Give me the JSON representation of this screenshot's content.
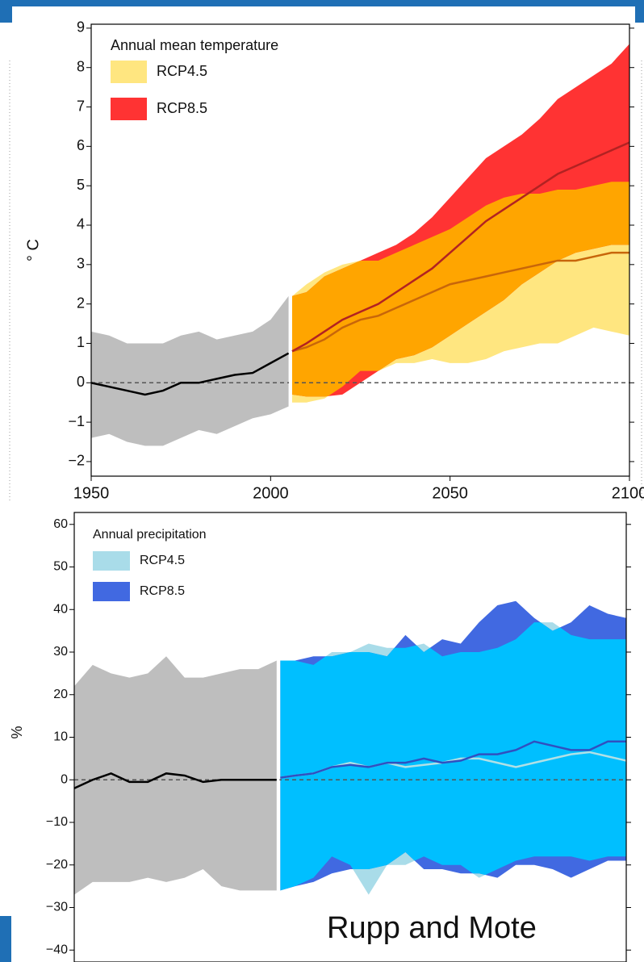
{
  "chart_data": [
    {
      "type": "band",
      "legend_title": "Annual mean temperature",
      "ylabel": "° C",
      "xlim": [
        1950,
        2100
      ],
      "xticks": [
        1950,
        2000,
        2050,
        2100
      ],
      "ylim": [
        -2.37,
        9.1
      ],
      "yticks": [
        {
          "value": -2,
          "label": "−2"
        },
        {
          "value": -1,
          "label": "−1"
        },
        0,
        1,
        2,
        3,
        4,
        5,
        6,
        7,
        8,
        9
      ],
      "zero_line": true,
      "overlap_color": "#ffa500",
      "historical": {
        "color": "#bebebe",
        "line_color": "#000000",
        "x": [
          1950,
          1955,
          1960,
          1965,
          1970,
          1975,
          1980,
          1985,
          1990,
          1995,
          2000,
          2005
        ],
        "upper": [
          1.3,
          1.2,
          1.0,
          1.0,
          1.0,
          1.2,
          1.3,
          1.1,
          1.2,
          1.3,
          1.6,
          2.2
        ],
        "lower": [
          -1.4,
          -1.3,
          -1.5,
          -1.6,
          -1.6,
          -1.4,
          -1.2,
          -1.3,
          -1.1,
          -0.9,
          -0.8,
          -0.6
        ],
        "mean": [
          0,
          -0.1,
          -0.2,
          -0.3,
          -0.2,
          0,
          0,
          0.1,
          0.2,
          0.25,
          0.5,
          0.75
        ]
      },
      "series": [
        {
          "name": "RCP4.5",
          "color": "#ffe680",
          "line_color": "#c8660a",
          "x": [
            2006,
            2010,
            2015,
            2020,
            2025,
            2030,
            2035,
            2040,
            2045,
            2050,
            2055,
            2060,
            2065,
            2070,
            2075,
            2080,
            2085,
            2090,
            2095,
            2100
          ],
          "upper": [
            2.2,
            2.5,
            2.8,
            3.0,
            3.1,
            3.1,
            3.3,
            3.5,
            3.7,
            3.9,
            4.2,
            4.5,
            4.7,
            4.8,
            4.8,
            4.9,
            4.9,
            5.0,
            5.1,
            5.1
          ],
          "lower": [
            -0.5,
            -0.5,
            -0.4,
            -0.1,
            0.3,
            0.3,
            0.5,
            0.5,
            0.6,
            0.5,
            0.5,
            0.6,
            0.8,
            0.9,
            1.0,
            1.0,
            1.2,
            1.4,
            1.3,
            1.2
          ],
          "mean": [
            0.8,
            0.9,
            1.1,
            1.4,
            1.6,
            1.7,
            1.9,
            2.1,
            2.3,
            2.5,
            2.6,
            2.7,
            2.8,
            2.9,
            3.0,
            3.1,
            3.1,
            3.2,
            3.3,
            3.3
          ]
        },
        {
          "name": "RCP8.5",
          "color": "#ff3333",
          "line_color": "#b22222",
          "x": [
            2006,
            2010,
            2015,
            2020,
            2025,
            2030,
            2035,
            2040,
            2045,
            2050,
            2055,
            2060,
            2065,
            2070,
            2075,
            2080,
            2085,
            2090,
            2095,
            2100
          ],
          "upper": [
            2.2,
            2.3,
            2.7,
            2.9,
            3.1,
            3.3,
            3.5,
            3.8,
            4.2,
            4.7,
            5.2,
            5.7,
            6.0,
            6.3,
            6.7,
            7.2,
            7.5,
            7.8,
            8.1,
            8.6
          ],
          "lower": [
            -0.3,
            -0.35,
            -0.35,
            -0.3,
            0.0,
            0.3,
            0.6,
            0.7,
            0.9,
            1.2,
            1.5,
            1.8,
            2.1,
            2.5,
            2.8,
            3.1,
            3.3,
            3.4,
            3.5,
            3.5
          ],
          "mean": [
            0.8,
            1.0,
            1.3,
            1.6,
            1.8,
            2.0,
            2.3,
            2.6,
            2.9,
            3.3,
            3.7,
            4.1,
            4.4,
            4.7,
            5.0,
            5.3,
            5.5,
            5.7,
            5.9,
            6.1
          ]
        }
      ]
    },
    {
      "type": "band",
      "legend_title": "Annual precipitation",
      "ylabel": "%",
      "xlim": [
        1950,
        2100
      ],
      "ylim": [
        -42.8,
        62.8
      ],
      "yticks": [
        {
          "value": -40,
          "label": "−40"
        },
        {
          "value": -30,
          "label": "−30"
        },
        {
          "value": -20,
          "label": "−20"
        },
        {
          "value": -10,
          "label": "−10"
        },
        0,
        10,
        20,
        30,
        40,
        50,
        60
      ],
      "zero_line": true,
      "overlap_color": "#00bfff",
      "historical": {
        "color": "#bebebe",
        "line_color": "#000000",
        "x": [
          1950,
          1955,
          1960,
          1965,
          1970,
          1975,
          1980,
          1985,
          1990,
          1995,
          2000,
          2005
        ],
        "upper": [
          22,
          27,
          25,
          24,
          25,
          29,
          24,
          24,
          25,
          26,
          26,
          28
        ],
        "lower": [
          -27,
          -24,
          -24,
          -24,
          -23,
          -24,
          -23,
          -21,
          -25,
          -26,
          -26,
          -26
        ],
        "mean": [
          -2,
          0,
          1.5,
          -0.5,
          -0.5,
          1.5,
          1,
          -0.5,
          0,
          0,
          0,
          0
        ]
      },
      "series": [
        {
          "name": "RCP4.5",
          "color": "#a9dce9",
          "line_color": "#b0e0e6",
          "x": [
            2006,
            2010,
            2015,
            2020,
            2025,
            2030,
            2035,
            2040,
            2045,
            2050,
            2055,
            2060,
            2065,
            2070,
            2075,
            2080,
            2085,
            2090,
            2095,
            2100
          ],
          "upper": [
            28,
            28,
            27,
            30,
            30,
            32,
            31,
            31,
            32,
            29,
            30,
            30,
            31,
            33,
            37,
            37,
            34,
            33,
            33,
            33
          ],
          "lower": [
            -26,
            -25,
            -23,
            -18,
            -20,
            -27,
            -20,
            -20,
            -18,
            -20,
            -20,
            -23,
            -21,
            -19,
            -18,
            -18,
            -18,
            -19,
            -18,
            -18
          ],
          "mean": [
            0.5,
            1,
            1.5,
            3,
            4,
            3,
            4,
            3,
            3.5,
            4,
            5,
            5,
            4,
            3,
            4,
            5,
            6,
            6.5,
            5.5,
            4.5
          ]
        },
        {
          "name": "RCP8.5",
          "color": "#4169e1",
          "line_color": "#3050c0",
          "x": [
            2006,
            2010,
            2015,
            2020,
            2025,
            2030,
            2035,
            2040,
            2045,
            2050,
            2055,
            2060,
            2065,
            2070,
            2075,
            2080,
            2085,
            2090,
            2095,
            2100
          ],
          "upper": [
            28,
            28,
            29,
            29,
            30,
            30,
            29,
            34,
            30,
            33,
            32,
            37,
            41,
            42,
            38,
            35,
            37,
            41,
            39,
            38
          ],
          "lower": [
            -26,
            -25,
            -24,
            -22,
            -21,
            -21,
            -20,
            -17,
            -21,
            -21,
            -22,
            -22,
            -23,
            -20,
            -20,
            -21,
            -23,
            -21,
            -19,
            -19
          ],
          "mean": [
            0.5,
            1,
            1.5,
            3,
            3.5,
            3,
            4,
            4,
            5,
            4,
            4.5,
            6,
            6,
            7,
            9,
            8,
            7,
            7,
            9,
            9
          ]
        }
      ]
    }
  ],
  "caption": "Rupp and Mote"
}
